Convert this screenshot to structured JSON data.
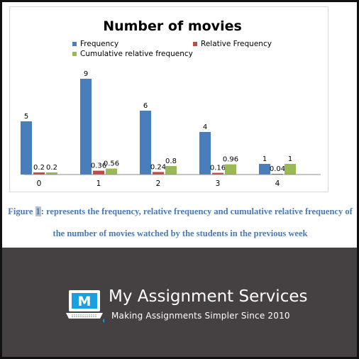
{
  "chart_data": {
    "type": "bar",
    "title": "Number of movies",
    "categories": [
      "0",
      "1",
      "2",
      "3",
      "4"
    ],
    "series": [
      {
        "name": "Frequency",
        "values": [
          5,
          9,
          6,
          4,
          1
        ],
        "labels": [
          "5",
          "9",
          "6",
          "4",
          "1"
        ],
        "color": "#4a7ebb"
      },
      {
        "name": "Relative Frequency",
        "values": [
          0.2,
          0.36,
          0.24,
          0.16,
          0.04
        ],
        "labels": [
          "0.2",
          "0.36",
          "0.24",
          "0.16",
          "0.04"
        ],
        "color": "#be4b48"
      },
      {
        "name": "Cumulative relative frequency",
        "values": [
          0.2,
          0.56,
          0.8,
          0.96,
          1
        ],
        "labels": [
          "0.2",
          "0.56",
          "0.8",
          "0.96",
          "1"
        ],
        "color": "#98b954"
      }
    ],
    "ylim": [
      0,
      10
    ],
    "grid": false,
    "legend": "top-center",
    "xlabel": "",
    "ylabel": ""
  },
  "caption": {
    "prefix": "Figure ",
    "highlight": "1",
    "line1_rest": ": represents the frequency, relative frequency and cumulative relative frequency of",
    "line2": "the number of movies watched by the students in the previous week"
  },
  "footer": {
    "brand_name": "My Assignment Services",
    "tagline": "Making Assignments Simpler Since 2010",
    "logo_letter": "M",
    "logo_icon": "laptop-logo-icon"
  }
}
